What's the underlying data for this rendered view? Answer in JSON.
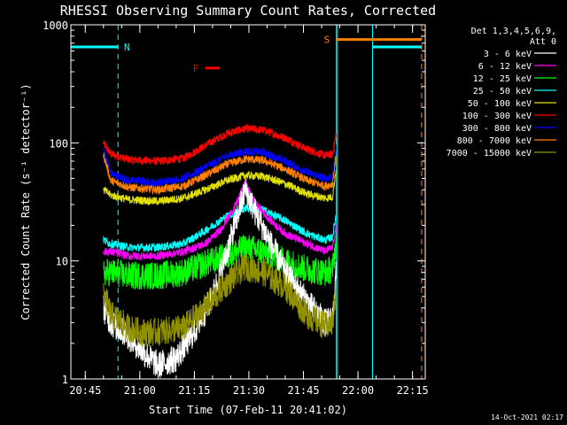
{
  "chart_data": {
    "type": "line",
    "title": "RHESSI Observing Summary Count Rates, Corrected",
    "xlabel": "Start Time (07-Feb-11 20:41:02)",
    "ylabel": "Corrected Count Rate (s⁻¹ detector⁻¹)",
    "x_scale": "time",
    "y_scale": "log",
    "xlim": [
      "20:41:02",
      "22:18:30"
    ],
    "ylim": [
      1,
      1000
    ],
    "x_ticks": [
      "20:45",
      "21:00",
      "21:15",
      "21:30",
      "21:45",
      "22:00",
      "22:15"
    ],
    "y_ticks": [
      1,
      10,
      100,
      1000
    ],
    "y_tick_labels": [
      "1",
      "10",
      "100",
      "1000"
    ],
    "legend": {
      "placement": "right",
      "header": [
        "Det 1,3,4,5,6,9,",
        "Att 0"
      ],
      "entries": [
        {
          "label": "3 - 6 keV",
          "color": "#ffffff"
        },
        {
          "label": "6 - 12 keV",
          "color": "#ff00ff"
        },
        {
          "label": "12 - 25 keV",
          "color": "#00ff00"
        },
        {
          "label": "25 - 50 keV",
          "color": "#00ffff"
        },
        {
          "label": "50 - 100 keV",
          "color": "#e0e000"
        },
        {
          "label": "100 - 300 keV",
          "color": "#ff0000"
        },
        {
          "label": "300 - 800 keV",
          "color": "#0000ff"
        },
        {
          "label": "800 - 7000 keV",
          "color": "#ff8000"
        },
        {
          "label": "7000 - 15000 keV",
          "color": "#909000"
        }
      ]
    },
    "annotations": [
      {
        "text": "N",
        "color": "#00ffff",
        "spans": [
          [
            "20:41:02",
            "20:54:00"
          ],
          [
            "22:04:00",
            "22:17:30"
          ]
        ],
        "level": 650
      },
      {
        "text": "F",
        "color": "#ff0000",
        "spans": [
          [
            "21:18:00",
            "21:22:00"
          ]
        ],
        "level": 430
      },
      {
        "text": "S",
        "color": "#ff8000",
        "spans": [
          [
            "21:54:00",
            "22:17:30"
          ]
        ],
        "level": 750
      }
    ],
    "night_lines": {
      "color": "#00ffff",
      "times": [
        "20:41:02",
        "20:54:00",
        "21:54:20",
        "22:04:00"
      ]
    },
    "saa_lines": {
      "color": "#ff8000",
      "times": [
        "21:54:00",
        "22:17:30"
      ]
    },
    "series": [
      {
        "name": "100 - 300 keV",
        "color": "#ff0000",
        "start": "20:50:00",
        "end": "21:54:00",
        "points": [
          [
            "20:50",
            100
          ],
          [
            "20:52",
            80
          ],
          [
            "20:57",
            72
          ],
          [
            "21:05",
            70
          ],
          [
            "21:12",
            74
          ],
          [
            "21:18",
            95
          ],
          [
            "21:24",
            120
          ],
          [
            "21:29",
            132
          ],
          [
            "21:34",
            128
          ],
          [
            "21:40",
            110
          ],
          [
            "21:46",
            88
          ],
          [
            "21:51",
            78
          ],
          [
            "21:53",
            80
          ],
          [
            "21:54",
            120
          ]
        ]
      },
      {
        "name": "300 - 800 keV",
        "color": "#0000ff",
        "start": "20:50:00",
        "end": "21:54:00",
        "points": [
          [
            "20:50",
            90
          ],
          [
            "20:52",
            55
          ],
          [
            "20:57",
            48
          ],
          [
            "21:05",
            46
          ],
          [
            "21:12",
            50
          ],
          [
            "21:18",
            62
          ],
          [
            "21:24",
            78
          ],
          [
            "21:29",
            85
          ],
          [
            "21:34",
            83
          ],
          [
            "21:40",
            70
          ],
          [
            "21:46",
            56
          ],
          [
            "21:51",
            50
          ],
          [
            "21:53",
            52
          ],
          [
            "21:54",
            90
          ]
        ]
      },
      {
        "name": "800 - 7000 keV",
        "color": "#ff8000",
        "start": "20:50:00",
        "end": "21:54:00",
        "points": [
          [
            "20:50",
            80
          ],
          [
            "20:52",
            48
          ],
          [
            "20:57",
            42
          ],
          [
            "21:05",
            40
          ],
          [
            "21:12",
            43
          ],
          [
            "21:18",
            53
          ],
          [
            "21:24",
            66
          ],
          [
            "21:29",
            73
          ],
          [
            "21:34",
            71
          ],
          [
            "21:40",
            60
          ],
          [
            "21:46",
            48
          ],
          [
            "21:51",
            43
          ],
          [
            "21:53",
            45
          ],
          [
            "21:54",
            80
          ]
        ]
      },
      {
        "name": "50 - 100 keV",
        "color": "#e0e000",
        "start": "20:50:00",
        "end": "21:54:00",
        "points": [
          [
            "20:50",
            40
          ],
          [
            "20:52",
            36
          ],
          [
            "20:57",
            33
          ],
          [
            "21:05",
            32
          ],
          [
            "21:12",
            34
          ],
          [
            "21:18",
            40
          ],
          [
            "21:24",
            48
          ],
          [
            "21:29",
            53
          ],
          [
            "21:34",
            52
          ],
          [
            "21:40",
            45
          ],
          [
            "21:46",
            37
          ],
          [
            "21:51",
            34
          ],
          [
            "21:53",
            35
          ],
          [
            "21:54",
            60
          ]
        ]
      },
      {
        "name": "25 - 50 keV",
        "color": "#00ffff",
        "start": "20:50:00",
        "end": "21:54:00",
        "points": [
          [
            "20:50",
            15
          ],
          [
            "20:52",
            14
          ],
          [
            "20:57",
            13
          ],
          [
            "21:05",
            13
          ],
          [
            "21:12",
            14
          ],
          [
            "21:18",
            18
          ],
          [
            "21:24",
            24
          ],
          [
            "21:29",
            28
          ],
          [
            "21:34",
            27
          ],
          [
            "21:40",
            22
          ],
          [
            "21:46",
            17
          ],
          [
            "21:51",
            15
          ],
          [
            "21:53",
            16
          ],
          [
            "21:54",
            25
          ]
        ]
      },
      {
        "name": "6 - 12 keV",
        "color": "#ff00ff",
        "start": "20:50:00",
        "end": "21:54:00",
        "points": [
          [
            "20:50",
            12
          ],
          [
            "20:52",
            12
          ],
          [
            "20:57",
            11
          ],
          [
            "21:05",
            11
          ],
          [
            "21:12",
            12
          ],
          [
            "21:18",
            14
          ],
          [
            "21:22",
            18
          ],
          [
            "21:26",
            28
          ],
          [
            "21:29",
            46
          ],
          [
            "21:32",
            30
          ],
          [
            "21:36",
            22
          ],
          [
            "21:40",
            17
          ],
          [
            "21:46",
            14
          ],
          [
            "21:51",
            12
          ],
          [
            "21:53",
            13
          ],
          [
            "21:54",
            20
          ]
        ]
      },
      {
        "name": "12 - 25 keV",
        "color": "#00ff00",
        "start": "20:50:00",
        "end": "21:54:00",
        "points": [
          [
            "20:50",
            8
          ],
          [
            "20:52",
            8
          ],
          [
            "20:57",
            7.5
          ],
          [
            "21:05",
            7.5
          ],
          [
            "21:12",
            8
          ],
          [
            "21:18",
            9.5
          ],
          [
            "21:24",
            11
          ],
          [
            "21:29",
            13
          ],
          [
            "21:34",
            12
          ],
          [
            "21:40",
            10
          ],
          [
            "21:46",
            8.5
          ],
          [
            "21:51",
            8
          ],
          [
            "21:53",
            8.5
          ],
          [
            "21:54",
            15
          ]
        ]
      },
      {
        "name": "3 - 6 keV",
        "color": "#ffffff",
        "start": "20:50:00",
        "end": "21:54:00",
        "points": [
          [
            "20:50",
            4
          ],
          [
            "20:52",
            3
          ],
          [
            "20:57",
            2.3
          ],
          [
            "21:00",
            1.8
          ],
          [
            "21:05",
            1.3
          ],
          [
            "21:10",
            1.5
          ],
          [
            "21:15",
            2.5
          ],
          [
            "21:20",
            5
          ],
          [
            "21:24",
            12
          ],
          [
            "21:27",
            25
          ],
          [
            "21:29",
            40
          ],
          [
            "21:32",
            25
          ],
          [
            "21:36",
            14
          ],
          [
            "21:40",
            8
          ],
          [
            "21:46",
            4.5
          ],
          [
            "21:51",
            3
          ],
          [
            "21:53",
            3.2
          ],
          [
            "21:54",
            8
          ]
        ]
      },
      {
        "name": "7000 - 15000 keV",
        "color": "#909000",
        "start": "20:50:00",
        "end": "21:54:00",
        "points": [
          [
            "20:50",
            5.5
          ],
          [
            "20:52",
            3.5
          ],
          [
            "20:57",
            2.7
          ],
          [
            "21:00",
            2.5
          ],
          [
            "21:05",
            2.5
          ],
          [
            "21:12",
            2.7
          ],
          [
            "21:18",
            4
          ],
          [
            "21:24",
            6.5
          ],
          [
            "21:29",
            9
          ],
          [
            "21:34",
            8
          ],
          [
            "21:40",
            6
          ],
          [
            "21:46",
            3.5
          ],
          [
            "21:51",
            2.8
          ],
          [
            "21:53",
            3
          ],
          [
            "21:54",
            6
          ]
        ]
      }
    ]
  },
  "footer": {
    "timestamp": "14-Oct-2021 02:17"
  }
}
